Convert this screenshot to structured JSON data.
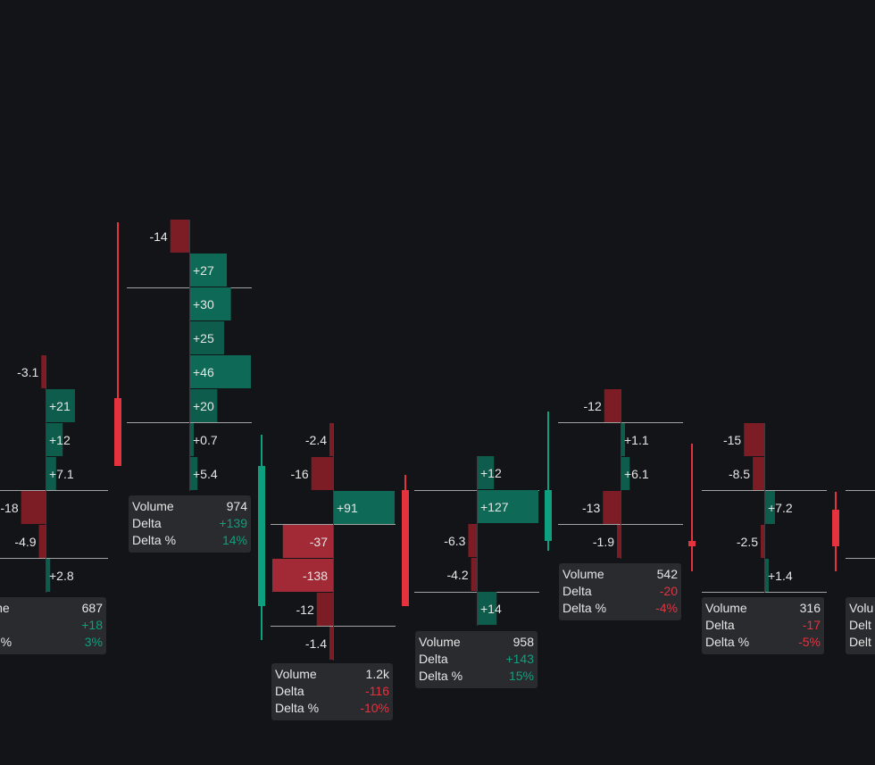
{
  "chart_data": {
    "type": "footprint",
    "title": "",
    "colors": {
      "positive": "#0e9f7e",
      "negative": "#e5323f",
      "positive_bar": "#0d5c4c",
      "negative_bar": "#7c1c24",
      "text": "#e6e6e6",
      "grid": "#bdbdbd",
      "panel": "#2a2b2f",
      "background": "#131417"
    },
    "stats_labels": {
      "volume": "Volume",
      "delta": "Delta",
      "delta_pct": "Delta %"
    },
    "candles": [
      {
        "direction": "down",
        "levels": [
          {
            "label": "-3.1",
            "value": -3.1
          },
          {
            "label": "+21",
            "value": 21
          },
          {
            "label": "+12",
            "value": 12
          },
          {
            "label": "+7.1",
            "value": 7.1
          },
          {
            "label": "-18",
            "value": -18
          },
          {
            "label": "-4.9",
            "value": -4.9
          },
          {
            "label": "+2.8",
            "value": 2.8
          }
        ],
        "stats": {
          "volume": "687",
          "delta": "+18",
          "delta_pct": "3%"
        }
      },
      {
        "direction": "up",
        "levels": [
          {
            "label": "-14",
            "value": -14
          },
          {
            "label": "+27",
            "value": 27
          },
          {
            "label": "+30",
            "value": 30
          },
          {
            "label": "+25",
            "value": 25
          },
          {
            "label": "+46",
            "value": 46
          },
          {
            "label": "+20",
            "value": 20
          },
          {
            "label": "+0.7",
            "value": 0.7
          },
          {
            "label": "+5.4",
            "value": 5.4
          }
        ],
        "stats": {
          "volume": "974",
          "delta": "+139",
          "delta_pct": "14%"
        }
      },
      {
        "direction": "down",
        "levels": [
          {
            "label": "-2.4",
            "value": -2.4
          },
          {
            "label": "-16",
            "value": -16
          },
          {
            "label": "+91",
            "value": 91
          },
          {
            "label": "-37",
            "value": -37
          },
          {
            "label": "-138",
            "value": -138
          },
          {
            "label": "-12",
            "value": -12
          },
          {
            "label": "-1.4",
            "value": -1.4
          }
        ],
        "stats": {
          "volume": "1.2k",
          "delta": "-116",
          "delta_pct": "-10%"
        }
      },
      {
        "direction": "up",
        "levels": [
          {
            "label": "+12",
            "value": 12
          },
          {
            "label": "+127",
            "value": 127
          },
          {
            "label": "-6.3",
            "value": -6.3
          },
          {
            "label": "-4.2",
            "value": -4.2
          },
          {
            "label": "+14",
            "value": 14
          }
        ],
        "stats": {
          "volume": "958",
          "delta": "+143",
          "delta_pct": "15%"
        }
      },
      {
        "direction": "down",
        "levels": [
          {
            "label": "-12",
            "value": -12
          },
          {
            "label": "+1.1",
            "value": 1.1
          },
          {
            "label": "+6.1",
            "value": 6.1
          },
          {
            "label": "-13",
            "value": -13
          },
          {
            "label": "-1.9",
            "value": -1.9
          }
        ],
        "stats": {
          "volume": "542",
          "delta": "-20",
          "delta_pct": "-4%"
        }
      },
      {
        "direction": "down",
        "levels": [
          {
            "label": "-15",
            "value": -15
          },
          {
            "label": "-8.5",
            "value": -8.5
          },
          {
            "label": "+7.2",
            "value": 7.2
          },
          {
            "label": "-2.5",
            "value": -2.5
          },
          {
            "label": "+1.4",
            "value": 1.4
          }
        ],
        "stats": {
          "volume": "316",
          "delta": "-17",
          "delta_pct": "-5%"
        }
      },
      {
        "direction": "up",
        "levels": [],
        "stats": {
          "volume": "Volu",
          "delta": "Delt",
          "delta_pct": "Delt"
        }
      }
    ]
  }
}
